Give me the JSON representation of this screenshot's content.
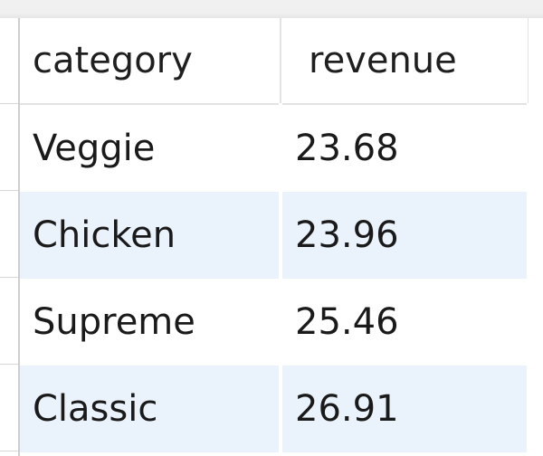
{
  "grid": {
    "columns": [
      "category",
      "revenue"
    ],
    "rows": [
      {
        "category": "Veggie",
        "revenue": "23.68"
      },
      {
        "category": "Chicken",
        "revenue": "23.96"
      },
      {
        "category": "Supreme",
        "revenue": "25.46"
      },
      {
        "category": "Classic",
        "revenue": "26.91"
      }
    ]
  },
  "colors": {
    "alt_row": "#eaf2fb",
    "grid_line": "#e3e3e3"
  }
}
